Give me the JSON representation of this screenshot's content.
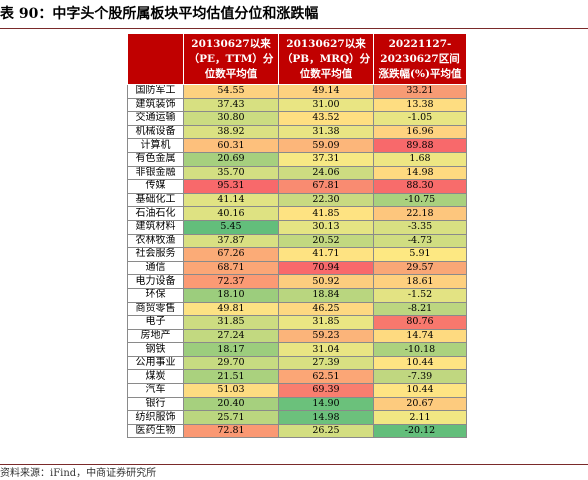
{
  "title": "表 90：中字头个股所属板块平均估值分位和涨跌幅",
  "source": "资料来源：iFind，中商证券研究所",
  "table": {
    "headers": [
      "",
      "20130627以来（PE，TTM）分位数平均值",
      "20130627以来（PB，MRQ）分位数平均值",
      "20221127-20230627区间涨跌幅(%)平均值"
    ],
    "rows": [
      {
        "name": "国防军工",
        "values": [
          "54.55",
          "49.14",
          "33.21"
        ],
        "colors": [
          "#fdd17f",
          "#fdd17f",
          "#f79b74"
        ]
      },
      {
        "name": "建筑装饰",
        "values": [
          "37.43",
          "31.00",
          "13.38"
        ],
        "colors": [
          "#d7e081",
          "#e9e583",
          "#fedd81"
        ]
      },
      {
        "name": "交通运输",
        "values": [
          "30.80",
          "43.52",
          "-1.05"
        ],
        "colors": [
          "#cbdc81",
          "#fedf81",
          "#e8e583"
        ]
      },
      {
        "name": "机械设备",
        "values": [
          "38.92",
          "31.38",
          "16.96"
        ],
        "colors": [
          "#dbe182",
          "#e9e583",
          "#fed380"
        ]
      },
      {
        "name": "计算机",
        "values": [
          "60.31",
          "59.09",
          "89.88"
        ],
        "colors": [
          "#fdc07c",
          "#fcb67a",
          "#f8696b"
        ]
      },
      {
        "name": "有色金属",
        "values": [
          "20.69",
          "37.31",
          "1.68"
        ],
        "colors": [
          "#a6d07e",
          "#f7e984",
          "#eee683"
        ]
      },
      {
        "name": "非银金融",
        "values": [
          "35.70",
          "24.06",
          "14.98"
        ],
        "colors": [
          "#d3df82",
          "#cddc81",
          "#feda80"
        ]
      },
      {
        "name": "传媒",
        "values": [
          "95.31",
          "67.81",
          "88.30"
        ],
        "colors": [
          "#f8696b",
          "#f98b71",
          "#f86c6b"
        ]
      },
      {
        "name": "基础化工",
        "values": [
          "41.14",
          "22.30",
          "-10.75"
        ],
        "colors": [
          "#e1e383",
          "#c9da81",
          "#a9d17e"
        ]
      },
      {
        "name": "石油石化",
        "values": [
          "40.16",
          "41.85",
          "22.18"
        ],
        "colors": [
          "#dee282",
          "#fee382",
          "#fdc67d"
        ]
      },
      {
        "name": "建筑材料",
        "values": [
          "5.45",
          "30.13",
          "-3.35"
        ],
        "colors": [
          "#63be7b",
          "#e5e483",
          "#d8e082"
        ]
      },
      {
        "name": "农林牧渔",
        "values": [
          "37.87",
          "20.52",
          "-4.73"
        ],
        "colors": [
          "#d9e082",
          "#c2d880",
          "#d0dd81"
        ]
      },
      {
        "name": "社会服务",
        "values": [
          "67.26",
          "41.71",
          "5.91"
        ],
        "colors": [
          "#fbab77",
          "#fee382",
          "#fde882"
        ]
      },
      {
        "name": "通信",
        "values": [
          "68.71",
          "70.94",
          "29.57"
        ],
        "colors": [
          "#fba676",
          "#f8696b",
          "#f9a776"
        ]
      },
      {
        "name": "电力设备",
        "values": [
          "72.37",
          "50.92",
          "18.61"
        ],
        "colors": [
          "#fb9a74",
          "#fdcd7e",
          "#fed07f"
        ]
      },
      {
        "name": "环保",
        "values": [
          "18.10",
          "18.84",
          "-1.52"
        ],
        "colors": [
          "#9ccd7d",
          "#b9d67f",
          "#e3e383"
        ]
      },
      {
        "name": "商贸零售",
        "values": [
          "49.81",
          "46.25",
          "-8.21"
        ],
        "colors": [
          "#fde283",
          "#fdd881",
          "#bcd680"
        ]
      },
      {
        "name": "电子",
        "values": [
          "31.85",
          "31.85",
          "80.76"
        ],
        "colors": [
          "#cddc81",
          "#eae683",
          "#f8786d"
        ]
      },
      {
        "name": "房地产",
        "values": [
          "27.24",
          "59.23",
          "14.74"
        ],
        "colors": [
          "#c2d980",
          "#fbb47a",
          "#feda80"
        ]
      },
      {
        "name": "钢铁",
        "values": [
          "18.17",
          "31.04",
          "-10.18"
        ],
        "colors": [
          "#9ccd7d",
          "#e9e583",
          "#acd27e"
        ]
      },
      {
        "name": "公用事业",
        "values": [
          "29.70",
          "27.39",
          "10.44"
        ],
        "colors": [
          "#c7db81",
          "#d8e082",
          "#fee483"
        ]
      },
      {
        "name": "煤炭",
        "values": [
          "21.51",
          "62.51",
          "-7.39"
        ],
        "colors": [
          "#aad17e",
          "#fba676",
          "#c0d780"
        ]
      },
      {
        "name": "汽车",
        "values": [
          "51.03",
          "69.39",
          "10.44"
        ],
        "colors": [
          "#fddc81",
          "#f97e6f",
          "#fee483"
        ]
      },
      {
        "name": "银行",
        "values": [
          "20.40",
          "14.90",
          "20.67"
        ],
        "colors": [
          "#a6d07e",
          "#6bc17b",
          "#fdcb7e"
        ]
      },
      {
        "name": "纺织服饰",
        "values": [
          "25.71",
          "14.98",
          "2.11"
        ],
        "colors": [
          "#bbd67f",
          "#6cc17c",
          "#f1e783"
        ]
      },
      {
        "name": "医药生物",
        "values": [
          "72.81",
          "26.25",
          "-20.12"
        ],
        "colors": [
          "#fa9873",
          "#d3de81",
          "#63be7b"
        ]
      }
    ]
  }
}
